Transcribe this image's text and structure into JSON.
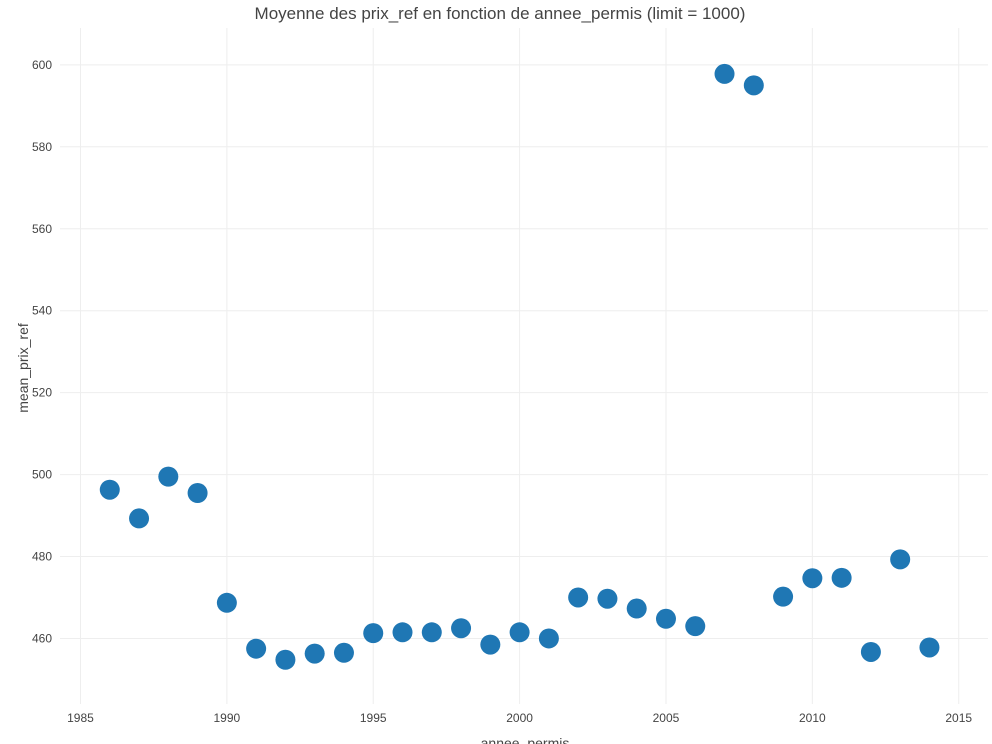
{
  "chart_data": {
    "type": "scatter",
    "title": "Moyenne des prix_ref en fonction de annee_permis (limit = 1000)",
    "xlabel": "annee_permis",
    "ylabel": "mean_prix_ref",
    "xlim": [
      1984.3,
      2016
    ],
    "ylim": [
      444,
      609
    ],
    "x_ticks": [
      1985,
      1990,
      1995,
      2000,
      2005,
      2010,
      2015
    ],
    "y_ticks": [
      460,
      480,
      500,
      520,
      540,
      560,
      580,
      600
    ],
    "grid": true,
    "legend": "none",
    "marker_color": "#1f77b4",
    "series": [
      {
        "x": [
          1986,
          1987,
          1988,
          1989,
          1990,
          1991,
          1992,
          1993,
          1994,
          1995,
          1996,
          1997,
          1998,
          1999,
          2000,
          2001,
          2002,
          2003,
          2004,
          2005,
          2006,
          2007,
          2008,
          2009,
          2010,
          2011,
          2012,
          2013,
          2014
        ],
        "y": [
          496.3,
          489.3,
          499.5,
          495.5,
          468.7,
          457.5,
          454.8,
          456.3,
          456.5,
          461.3,
          461.5,
          461.5,
          462.5,
          458.5,
          461.5,
          460.0,
          470.0,
          469.7,
          467.3,
          464.8,
          463.0,
          597.8,
          595.0,
          470.2,
          474.7,
          474.8,
          456.7,
          479.3,
          457.8
        ]
      }
    ]
  }
}
